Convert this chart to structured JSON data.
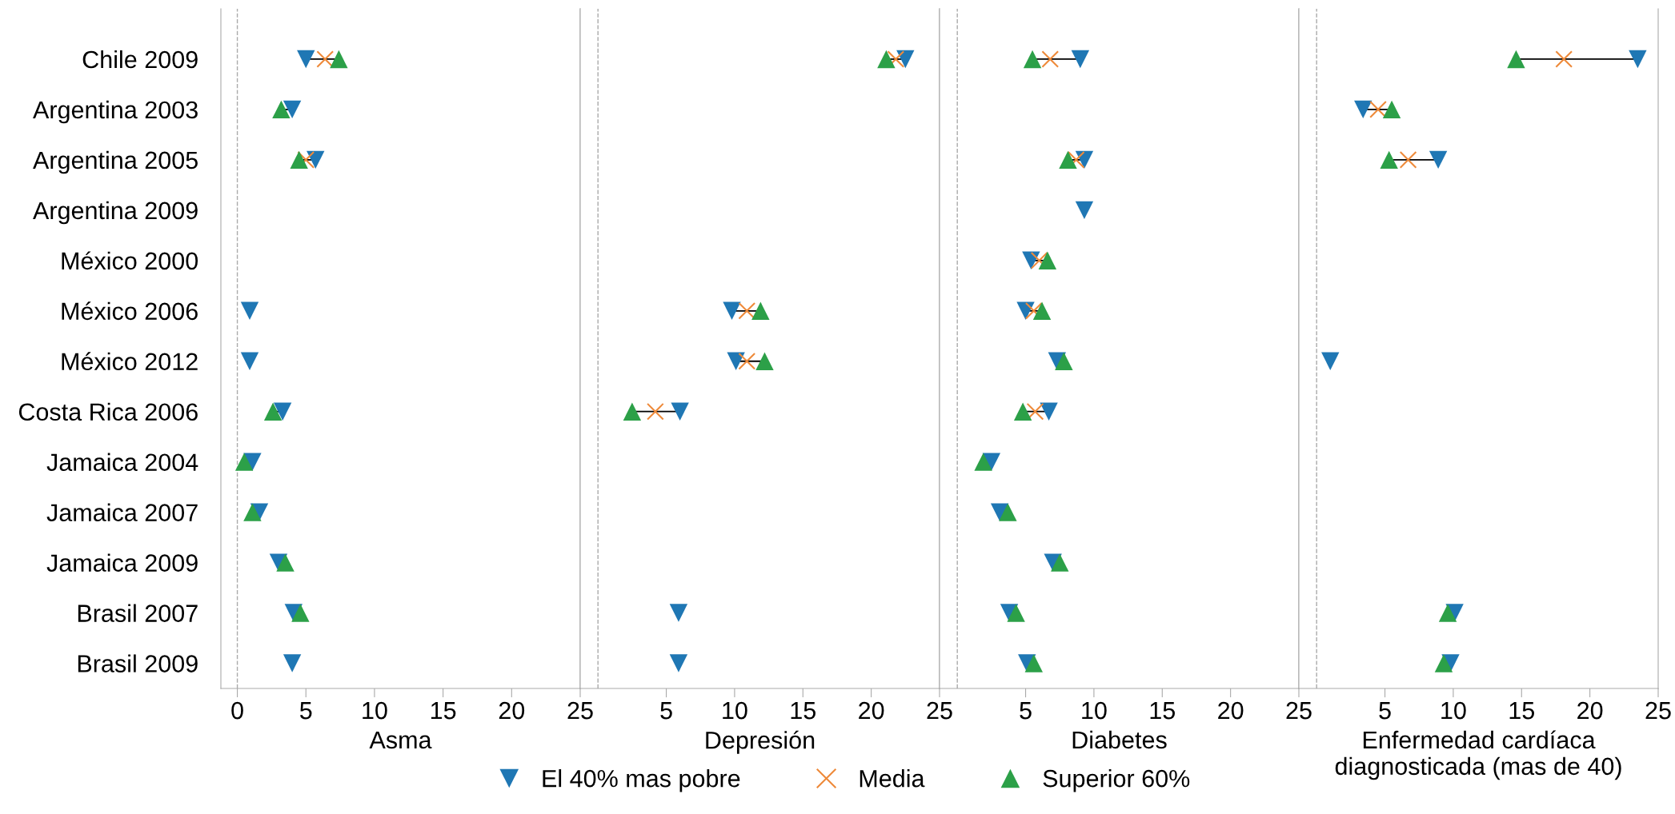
{
  "chart_data": [
    {
      "type": "scatter",
      "orientation": "horizontal",
      "xlabel": "Asma",
      "categories": [
        "Chile 2009",
        "Argentina 2003",
        "Argentina 2005",
        "Argentina 2009",
        "México 2000",
        "México 2006",
        "México 2012",
        "Costa Rica 2006",
        "Jamaica 2004",
        "Jamaica 2007",
        "Jamaica 2009",
        "Brasil 2007",
        "Brasil 2009"
      ],
      "xlim": [
        -1.2,
        25
      ],
      "xticks": [
        0,
        5,
        10,
        15,
        20,
        25
      ],
      "ref_lines": [
        {
          "axis": "x",
          "value": 0,
          "label": null,
          "color": "#aaaaaa",
          "line_style": "dashed"
        }
      ],
      "legend": "bottom",
      "series": [
        {
          "name": "El 40% mas pobre",
          "color": "#1f77b4",
          "marker": "triangle-down",
          "values": [
            5.0,
            4.0,
            5.7,
            null,
            null,
            0.9,
            0.9,
            3.3,
            1.1,
            1.6,
            3.0,
            4.1,
            4.0
          ]
        },
        {
          "name": "Media",
          "color": "#ee8a3a",
          "marker": "cross",
          "values": [
            6.4,
            null,
            5.0,
            null,
            null,
            null,
            null,
            null,
            null,
            null,
            null,
            null,
            null
          ]
        },
        {
          "name": "Superior 60%",
          "color": "#2ca048",
          "marker": "triangle",
          "values": [
            7.4,
            3.2,
            4.5,
            null,
            null,
            null,
            null,
            2.6,
            0.5,
            1.1,
            3.5,
            4.6,
            null
          ]
        }
      ]
    },
    {
      "type": "scatter",
      "orientation": "horizontal",
      "xlabel": "Depresión",
      "tick_labels": "x",
      "categories": [
        null,
        null,
        null,
        null,
        null,
        null,
        null,
        null,
        null,
        null,
        null,
        null,
        null
      ],
      "xlim": [
        -1.3,
        25
      ],
      "xticks": [
        5,
        10,
        15,
        20,
        25
      ],
      "ref_lines": [
        {
          "axis": "x",
          "value": 0,
          "label": null,
          "color": "#aaaaaa",
          "line_style": "dashed"
        }
      ],
      "series": [
        {
          "color": "#1f77b4",
          "marker": "triangle-down",
          "values": [
            22.5,
            null,
            null,
            null,
            null,
            9.8,
            10.1,
            6.0,
            null,
            null,
            null,
            5.9,
            5.9
          ]
        },
        {
          "color": "#ee8a3a",
          "marker": "cross",
          "values": [
            21.8,
            null,
            null,
            null,
            null,
            10.9,
            10.9,
            4.2,
            null,
            null,
            null,
            null,
            null
          ]
        },
        {
          "color": "#2ca048",
          "marker": "triangle",
          "values": [
            21.1,
            null,
            null,
            null,
            null,
            11.9,
            12.2,
            2.5,
            null,
            null,
            null,
            null,
            null
          ]
        }
      ]
    },
    {
      "type": "scatter",
      "orientation": "horizontal",
      "xlabel": "Diabetes",
      "tick_labels": "x",
      "categories": [
        null,
        null,
        null,
        null,
        null,
        null,
        null,
        null,
        null,
        null,
        null,
        null,
        null
      ],
      "xlim": [
        -1.3,
        25
      ],
      "xticks": [
        5,
        10,
        15,
        20,
        25
      ],
      "ref_lines": [
        {
          "axis": "x",
          "value": 0,
          "label": null,
          "color": "#aaaaaa",
          "line_style": "dashed"
        }
      ],
      "series": [
        {
          "color": "#1f77b4",
          "marker": "triangle-down",
          "values": [
            9.0,
            null,
            9.3,
            9.3,
            5.4,
            5.0,
            7.3,
            6.7,
            2.5,
            3.1,
            7.0,
            3.8,
            5.1
          ]
        },
        {
          "color": "#ee8a3a",
          "marker": "cross",
          "values": [
            6.8,
            null,
            8.7,
            null,
            6.0,
            5.6,
            null,
            5.7,
            null,
            null,
            null,
            null,
            null
          ]
        },
        {
          "color": "#2ca048",
          "marker": "triangle",
          "values": [
            5.5,
            null,
            8.1,
            null,
            6.6,
            6.2,
            7.8,
            4.8,
            1.9,
            3.7,
            7.5,
            4.3,
            5.6
          ]
        }
      ]
    },
    {
      "type": "scatter",
      "orientation": "horizontal",
      "xlabel": "Enfermedad cardíaca\ndiagnosticada (mas de 40)",
      "tick_labels": "x",
      "categories": [
        null,
        null,
        null,
        null,
        null,
        null,
        null,
        null,
        null,
        null,
        null,
        null,
        null
      ],
      "xlim": [
        -1.3,
        25
      ],
      "xticks": [
        5,
        10,
        15,
        20,
        25
      ],
      "ref_lines": [
        {
          "axis": "x",
          "value": 0,
          "label": null,
          "color": "#aaaaaa",
          "line_style": "dashed"
        }
      ],
      "series": [
        {
          "color": "#1f77b4",
          "marker": "triangle-down",
          "values": [
            23.5,
            3.4,
            8.9,
            null,
            null,
            null,
            1.0,
            null,
            null,
            null,
            null,
            10.1,
            9.8
          ]
        },
        {
          "color": "#ee8a3a",
          "marker": "cross",
          "values": [
            18.1,
            4.5,
            6.7,
            null,
            null,
            null,
            null,
            null,
            null,
            null,
            null,
            null,
            null
          ]
        },
        {
          "color": "#2ca048",
          "marker": "triangle",
          "values": [
            14.6,
            5.5,
            5.3,
            null,
            null,
            null,
            null,
            null,
            null,
            null,
            null,
            9.6,
            9.3
          ]
        }
      ]
    }
  ]
}
